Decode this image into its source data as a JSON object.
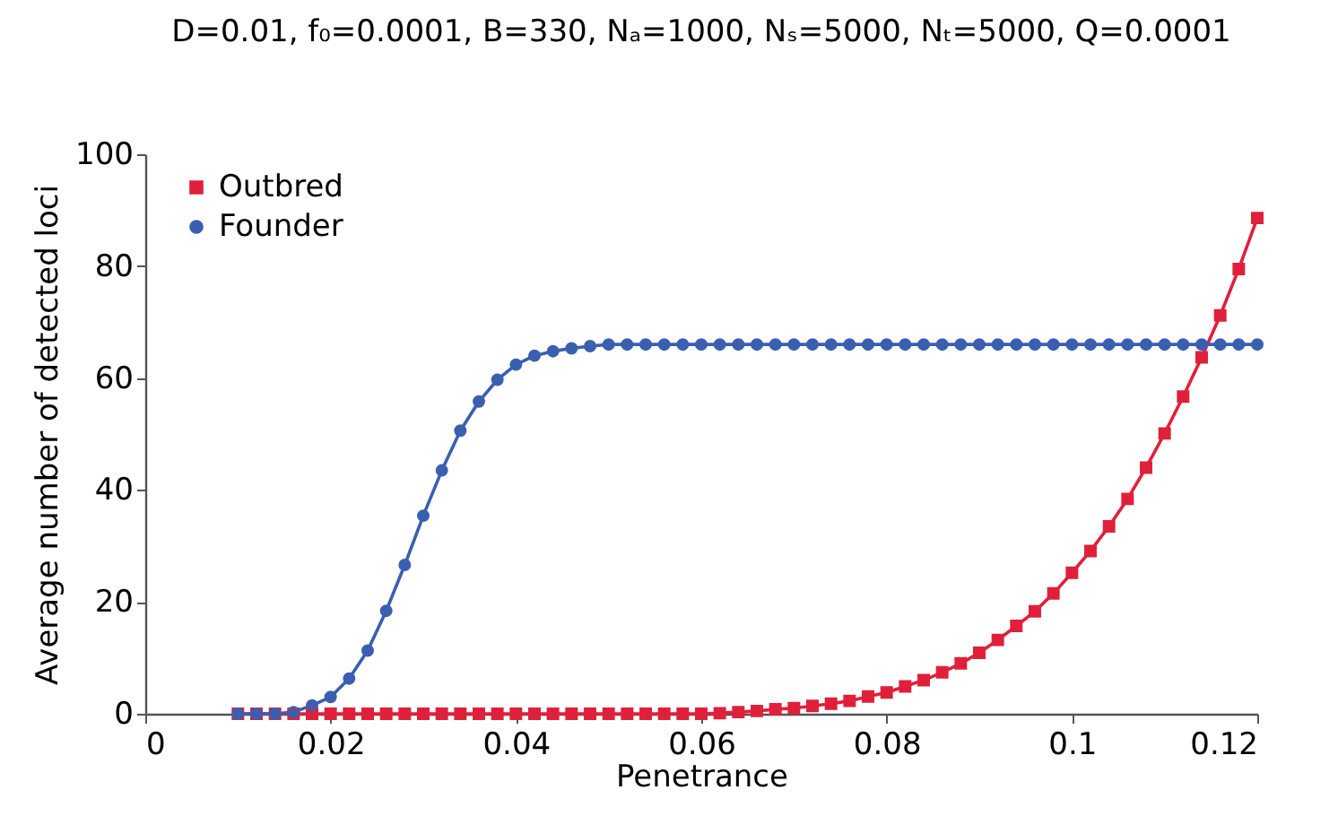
{
  "chart_data": {
    "type": "line",
    "title": "D=0.01, f₀=0.0001, B=330, Nₐ=1000, Nₛ=5000, Nₜ=5000, Q=0.0001",
    "xlabel": "Penetrance",
    "ylabel": "Average number of detected loci",
    "x": [
      0.01,
      0.012,
      0.014,
      0.016,
      0.018,
      0.02,
      0.022,
      0.024,
      0.026,
      0.028,
      0.03,
      0.032,
      0.034,
      0.036,
      0.038,
      0.04,
      0.042,
      0.044,
      0.046,
      0.048,
      0.05,
      0.052,
      0.054,
      0.056,
      0.058,
      0.06,
      0.062,
      0.064,
      0.066,
      0.068,
      0.07,
      0.072,
      0.074,
      0.076,
      0.078,
      0.08,
      0.082,
      0.084,
      0.086,
      0.088,
      0.09,
      0.092,
      0.094,
      0.096,
      0.098,
      0.1,
      0.102,
      0.104,
      0.106,
      0.108,
      0.11,
      0.112,
      0.114,
      0.116,
      0.118,
      0.12
    ],
    "series": [
      {
        "name": "Outbred",
        "color": "#e0203a",
        "marker": "square",
        "values": [
          0,
          0,
          0,
          0,
          0,
          0,
          0,
          0,
          0,
          0,
          0,
          0,
          0,
          0,
          0,
          0,
          0,
          0,
          0,
          0,
          0,
          0,
          0,
          0,
          0,
          0,
          0.1,
          0.3,
          0.5,
          0.8,
          1.0,
          1.4,
          1.8,
          2.3,
          3.1,
          3.8,
          4.9,
          6,
          7.4,
          9,
          10.9,
          13.2,
          15.7,
          18.3,
          21.5,
          25.2,
          29.1,
          33.5,
          38.4,
          44,
          50.1,
          56.7,
          63.7,
          71.2,
          79.5,
          88.6
        ]
      },
      {
        "name": "Founder",
        "color": "#3a5fb0",
        "marker": "circle",
        "values": [
          0,
          0,
          0,
          0.3,
          1.5,
          3,
          6.3,
          11.3,
          18.4,
          26.6,
          35.4,
          43.5,
          50.6,
          55.8,
          59.7,
          62.4,
          64,
          64.8,
          65.3,
          65.7,
          66,
          66,
          66,
          66,
          66,
          66,
          66,
          66,
          66,
          66,
          66,
          66,
          66,
          66,
          66,
          66,
          66,
          66,
          66,
          66,
          66,
          66,
          66,
          66,
          66,
          66,
          66,
          66,
          66,
          66,
          66,
          66,
          66,
          66,
          66,
          66
        ]
      }
    ],
    "xlim": [
      0,
      0.12
    ],
    "xticks": [
      0,
      0.02,
      0.04,
      0.06,
      0.08,
      0.1,
      0.12
    ],
    "ylim": [
      0,
      100
    ],
    "yticks": [
      0,
      20,
      40,
      60,
      80,
      100
    ],
    "grid": false,
    "legend": "top left",
    "line_style": "solid"
  }
}
